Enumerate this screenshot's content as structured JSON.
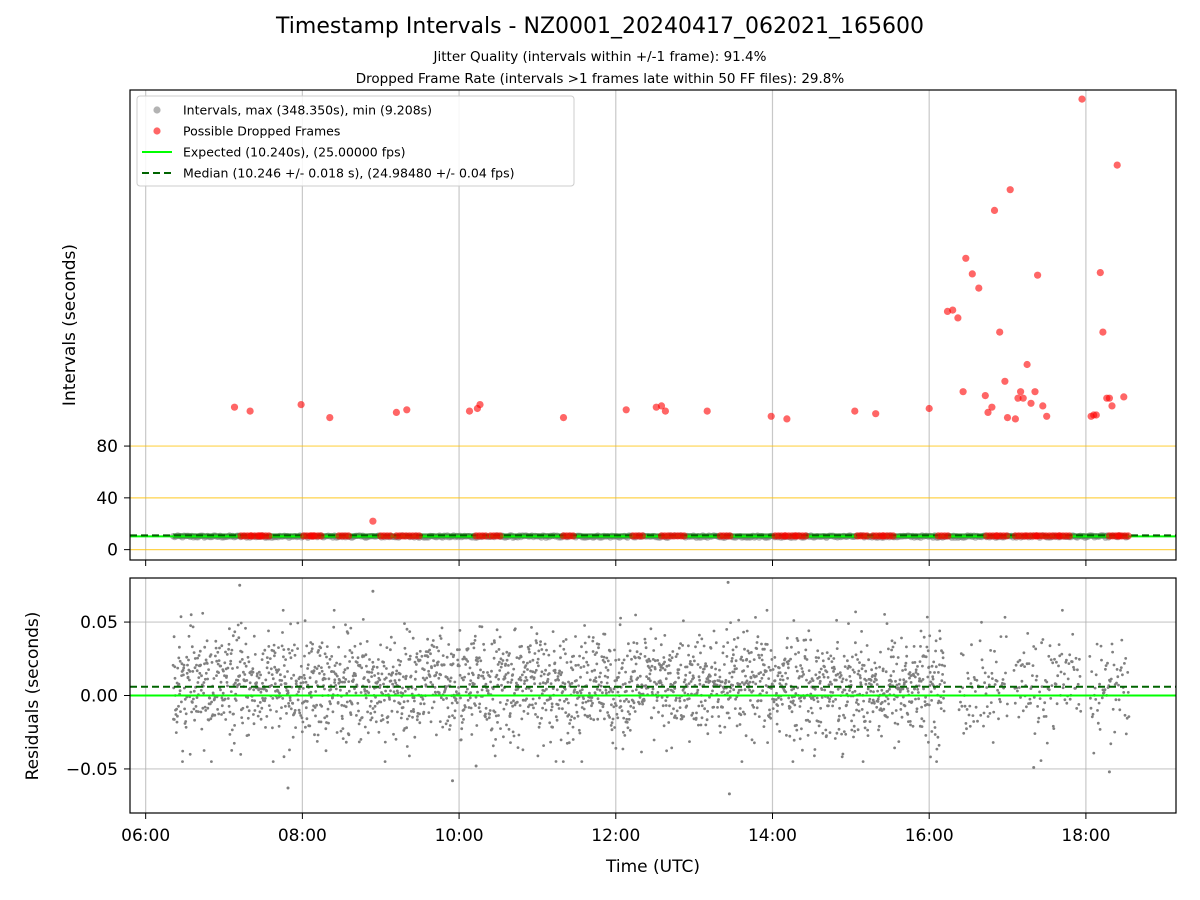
{
  "title": "Timestamp Intervals - NZ0001_20240417_062021_165600",
  "subtitle_1": "Jitter Quality (intervals within +/-1 frame): 91.4%",
  "subtitle_2": "Dropped Frame Rate (intervals >1 frames late within 50 FF files): 29.8%",
  "colors": {
    "interval_points": "#808080",
    "dropped_points": "#ff0000",
    "expected_line": "#00ff00",
    "median_line": "#006400",
    "threshold_lines": "#ffc000",
    "grid": "#b0b0b0"
  },
  "chart_data": [
    {
      "type": "scatter",
      "panel": "top",
      "xlabel": "",
      "ylabel": "Intervals (seconds)",
      "xlim": [
        "05:48",
        "19:09"
      ],
      "x_ticks": [
        "06:00",
        "08:00",
        "10:00",
        "12:00",
        "14:00",
        "16:00",
        "18:00"
      ],
      "y_ticks": [
        "0",
        "40",
        "80"
      ],
      "ylim": [
        -8,
        355
      ],
      "grid": "vertical",
      "legend_position": "upper-left",
      "legend": [
        "Intervals, max (348.350s), min (9.208s)",
        "Possible Dropped Frames",
        "Expected (10.240s), (25.00000 fps)",
        "Median (10.246 +/- 0.018 s), (24.98480 +/- 0.04 fps)"
      ],
      "expected_interval": 10.24,
      "median_interval": 10.246,
      "threshold_lines_y": [
        0,
        40,
        80
      ],
      "intervals_band": {
        "x_start": "06:21",
        "x_end": "18:33",
        "y_min": 9.2,
        "y_max": 11
      },
      "dropped_frames": [
        [
          "07:08",
          110
        ],
        [
          "07:20",
          107
        ],
        [
          "07:59",
          112
        ],
        [
          "08:21",
          102
        ],
        [
          "09:12",
          106
        ],
        [
          "09:20",
          108
        ],
        [
          "10:08",
          107
        ],
        [
          "10:14",
          109
        ],
        [
          "10:16",
          112
        ],
        [
          "11:20",
          102
        ],
        [
          "12:08",
          108
        ],
        [
          "12:31",
          110
        ],
        [
          "12:35",
          111
        ],
        [
          "12:38",
          107
        ],
        [
          "13:10",
          107
        ],
        [
          "13:59",
          103
        ],
        [
          "14:11",
          101
        ],
        [
          "15:03",
          107
        ],
        [
          "15:19",
          105
        ],
        [
          "16:00",
          109
        ],
        [
          "16:14",
          184
        ],
        [
          "16:18",
          185
        ],
        [
          "16:22",
          179
        ],
        [
          "16:26",
          122
        ],
        [
          "16:28",
          225
        ],
        [
          "16:33",
          213
        ],
        [
          "16:38",
          202
        ],
        [
          "16:43",
          119
        ],
        [
          "16:45",
          106
        ],
        [
          "16:48",
          110
        ],
        [
          "16:50",
          262
        ],
        [
          "16:54",
          168
        ],
        [
          "16:58",
          130
        ],
        [
          "17:00",
          102
        ],
        [
          "17:02",
          278
        ],
        [
          "17:06",
          101
        ],
        [
          "17:08",
          117
        ],
        [
          "17:10",
          122
        ],
        [
          "17:12",
          117
        ],
        [
          "17:15",
          143
        ],
        [
          "17:18",
          113
        ],
        [
          "17:21",
          122
        ],
        [
          "17:23",
          212
        ],
        [
          "17:27",
          111
        ],
        [
          "17:30",
          103
        ],
        [
          "17:57",
          348
        ],
        [
          "18:04",
          103
        ],
        [
          "18:06",
          104
        ],
        [
          "18:08",
          104
        ],
        [
          "18:11",
          214
        ],
        [
          "18:13",
          168
        ],
        [
          "18:16",
          117
        ],
        [
          "18:18",
          117
        ],
        [
          "18:20",
          111
        ],
        [
          "18:24",
          297
        ],
        [
          "18:29",
          118
        ]
      ],
      "dropped_near_median": [
        [
          "07:13",
          10.6
        ],
        [
          "07:21",
          10.6
        ],
        [
          "07:27",
          10.6
        ],
        [
          "08:01",
          10.6
        ],
        [
          "08:07",
          10.6
        ],
        [
          "08:28",
          10.6
        ],
        [
          "09:00",
          10.6
        ],
        [
          "09:12",
          10.6
        ],
        [
          "09:22",
          10.6
        ],
        [
          "10:13",
          10.6
        ],
        [
          "10:24",
          10.6
        ],
        [
          "11:20",
          10.6
        ],
        [
          "12:13",
          10.6
        ],
        [
          "12:35",
          10.6
        ],
        [
          "12:45",
          10.6
        ],
        [
          "13:20",
          10.6
        ],
        [
          "14:02",
          10.6
        ],
        [
          "14:10",
          10.6
        ],
        [
          "14:18",
          10.6
        ],
        [
          "15:05",
          10.6
        ],
        [
          "15:17",
          10.6
        ],
        [
          "15:25",
          10.6
        ],
        [
          "16:07",
          10.6
        ],
        [
          "16:44",
          10.6
        ],
        [
          "16:52",
          10.6
        ],
        [
          "17:06",
          10.6
        ],
        [
          "17:15",
          10.6
        ],
        [
          "17:22",
          10.6
        ],
        [
          "17:32",
          10.6
        ],
        [
          "17:40",
          10.6
        ],
        [
          "18:18",
          10.6
        ],
        [
          "18:25",
          10.6
        ]
      ],
      "outlier_low": [
        [
          "08:54",
          22
        ]
      ]
    },
    {
      "type": "scatter",
      "panel": "bottom",
      "xlabel": "Time (UTC)",
      "ylabel": "Residuals (seconds)",
      "xlim": [
        "05:48",
        "19:09"
      ],
      "ylim": [
        -0.08,
        0.08
      ],
      "x_ticks": [
        "06:00",
        "08:00",
        "10:00",
        "12:00",
        "14:00",
        "16:00",
        "18:00"
      ],
      "y_ticks": [
        "0.05",
        "0.00",
        "−0.05"
      ],
      "grid": "both",
      "expected_residual": 0,
      "median_residual": 0.006,
      "residual_center": 0.006,
      "residual_spread": 0.018,
      "residual_segments": [
        [
          "06:21",
          "16:12"
        ],
        [
          "16:23",
          "17:00"
        ],
        [
          "17:05",
          "17:56"
        ],
        [
          "18:03",
          "18:33"
        ]
      ],
      "residual_outliers": [
        [
          "07:12",
          0.075
        ],
        [
          "07:49",
          -0.063
        ],
        [
          "08:54",
          0.071
        ],
        [
          "09:55",
          -0.058
        ],
        [
          "10:13",
          -0.048
        ],
        [
          "13:26",
          0.077
        ],
        [
          "13:27",
          -0.067
        ],
        [
          "17:20",
          -0.049
        ],
        [
          "18:18",
          -0.052
        ]
      ]
    }
  ]
}
